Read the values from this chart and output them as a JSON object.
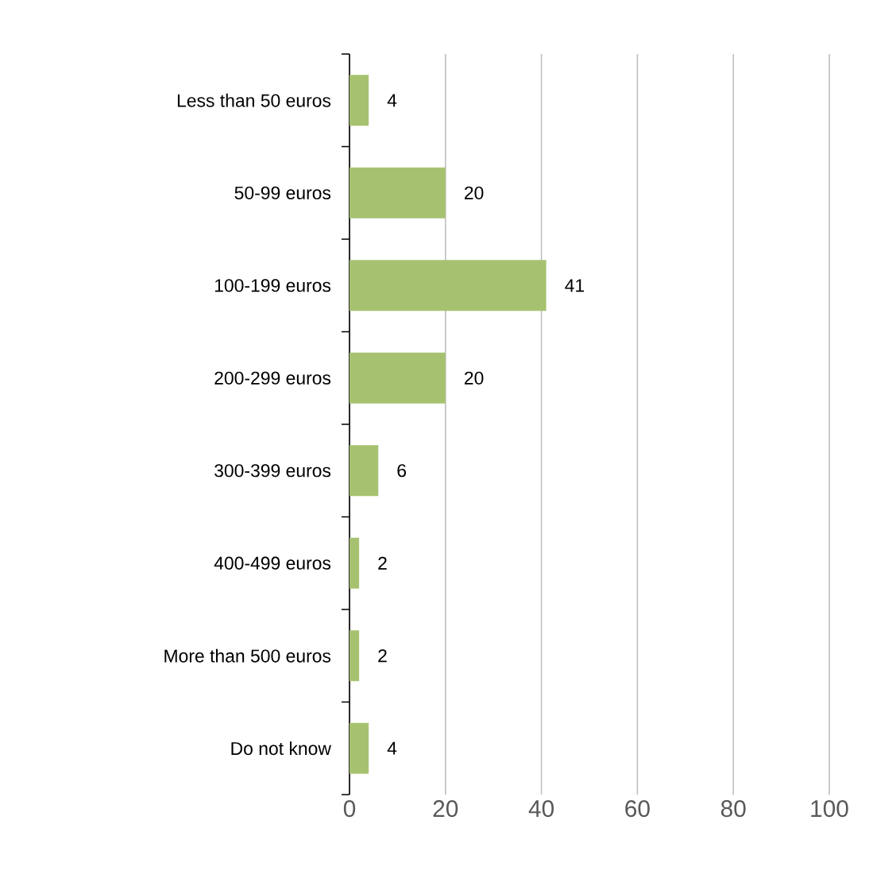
{
  "chart_data": {
    "type": "bar",
    "orientation": "horizontal",
    "categories": [
      "Less than 50 euros",
      "50-99 euros",
      "100-199 euros",
      "200-299 euros",
      "300-399 euros",
      "400-499 euros",
      "More than 500 euros",
      "Do not know"
    ],
    "values": [
      4,
      20,
      41,
      20,
      6,
      2,
      2,
      4
    ],
    "color": "#a6c270",
    "xlim": [
      0,
      100
    ],
    "xticks": [
      0,
      20,
      40,
      60,
      80,
      100
    ],
    "grid": "x",
    "data_labels": true
  }
}
